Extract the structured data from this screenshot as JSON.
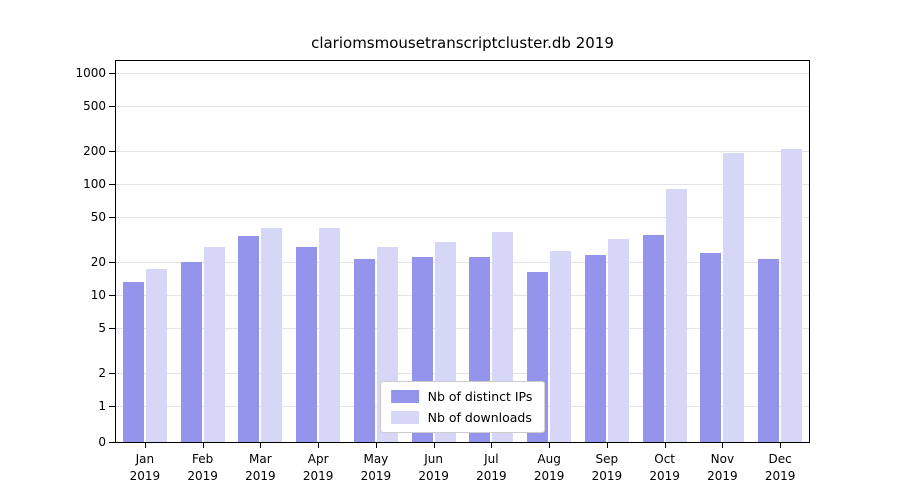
{
  "chart_data": {
    "type": "bar",
    "title": "clariomsmousetranscriptcluster.db 2019",
    "categories": [
      "Jan 2019",
      "Feb 2019",
      "Mar 2019",
      "Apr 2019",
      "May 2019",
      "Jun 2019",
      "Jul 2019",
      "Aug 2019",
      "Sep 2019",
      "Oct 2019",
      "Nov 2019",
      "Dec 2019"
    ],
    "series": [
      {
        "name": "Nb of distinct IPs",
        "color": "#9494ec",
        "values": [
          13,
          20,
          34,
          27,
          21,
          22,
          22,
          16,
          23,
          35,
          24,
          21
        ]
      },
      {
        "name": "Nb of downloads",
        "color": "#d6d6f6",
        "values": [
          17,
          27,
          40,
          40,
          27,
          30,
          37,
          25,
          32,
          90,
          190,
          205
        ]
      }
    ],
    "yscale": "log-with-zero-baseline",
    "yticks": [
      0,
      1,
      2,
      5,
      10,
      20,
      50,
      100,
      200,
      500,
      1000
    ],
    "ylim": [
      0,
      1000
    ],
    "xlabel": "",
    "ylabel": "",
    "grid": true,
    "legend_position": "lower center"
  },
  "style": {
    "grid_color": "#e4e4e4",
    "axis_color": "#000000",
    "background": "#ffffff",
    "legend_border": "#cccccc"
  }
}
